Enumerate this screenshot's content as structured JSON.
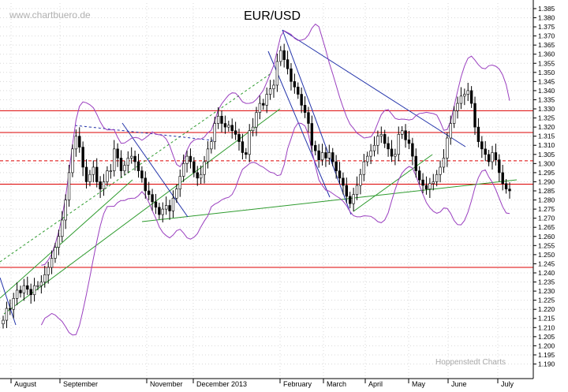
{
  "chart_data": {
    "type": "candlestick",
    "title": "EUR/USD",
    "watermark_top": "www.chartbuero.de",
    "watermark_bottom": "Hoppenstedt Charts",
    "x_labels": [
      "August",
      "September",
      "November",
      "December 2013",
      "February",
      "March",
      "April",
      "May",
      "June",
      "July"
    ],
    "ylim": [
      1.182,
      1.388
    ],
    "y_ticks": [
      "1.190",
      "1.195",
      "1.200",
      "1.205",
      "1.210",
      "1.215",
      "1.220",
      "1.225",
      "1.230",
      "1.235",
      "1.240",
      "1.245",
      "1.250",
      "1.255",
      "1.260",
      "1.265",
      "1.270",
      "1.275",
      "1.280",
      "1.285",
      "1.290",
      "1.295",
      "1.300",
      "1.305",
      "1.310",
      "1.315",
      "1.320",
      "1.325",
      "1.330",
      "1.335",
      "1.340",
      "1.345",
      "1.350",
      "1.355",
      "1.360",
      "1.365",
      "1.370",
      "1.375",
      "1.380",
      "1.385"
    ],
    "horizontal_levels": [
      {
        "value": 1.329,
        "style": "solid"
      },
      {
        "value": 1.317,
        "style": "solid"
      },
      {
        "value": 1.3015,
        "style": "dashed"
      },
      {
        "value": 1.2887,
        "style": "solid"
      },
      {
        "value": 1.243,
        "style": "solid"
      }
    ],
    "closes": [
      1.214,
      1.2205,
      1.22,
      1.226,
      1.2305,
      1.229,
      1.233,
      1.231,
      1.228,
      1.233,
      1.233,
      1.235,
      1.239,
      1.243,
      1.248,
      1.254,
      1.26,
      1.269,
      1.28,
      1.295,
      1.308,
      1.315,
      1.309,
      1.298,
      1.29,
      1.294,
      1.298,
      1.29,
      1.286,
      1.29,
      1.296,
      1.296,
      1.308,
      1.303,
      1.296,
      1.299,
      1.303,
      1.304,
      1.301,
      1.296,
      1.292,
      1.285,
      1.283,
      1.279,
      1.276,
      1.272,
      1.275,
      1.277,
      1.274,
      1.281,
      1.286,
      1.293,
      1.3,
      1.304,
      1.301,
      1.295,
      1.292,
      1.294,
      1.301,
      1.308,
      1.312,
      1.322,
      1.326,
      1.322,
      1.32,
      1.321,
      1.318,
      1.316,
      1.312,
      1.306,
      1.305,
      1.318,
      1.32,
      1.328,
      1.333,
      1.332,
      1.338,
      1.341,
      1.343,
      1.356,
      1.362,
      1.357,
      1.352,
      1.345,
      1.342,
      1.338,
      1.332,
      1.328,
      1.322,
      1.31,
      1.307,
      1.302,
      1.306,
      1.303,
      1.306,
      1.301,
      1.296,
      1.292,
      1.288,
      1.282,
      1.278,
      1.283,
      1.288,
      1.294,
      1.301,
      1.304,
      1.307,
      1.31,
      1.315,
      1.316,
      1.311,
      1.308,
      1.304,
      1.305,
      1.316,
      1.318,
      1.313,
      1.311,
      1.304,
      1.296,
      1.291,
      1.288,
      1.286,
      1.289,
      1.29,
      1.294,
      1.298,
      1.303,
      1.314,
      1.322,
      1.329,
      1.333,
      1.337,
      1.338,
      1.34,
      1.333,
      1.32,
      1.312,
      1.308,
      1.305,
      1.301,
      1.306,
      1.302,
      1.295,
      1.289,
      1.286,
      1.285
    ]
  }
}
